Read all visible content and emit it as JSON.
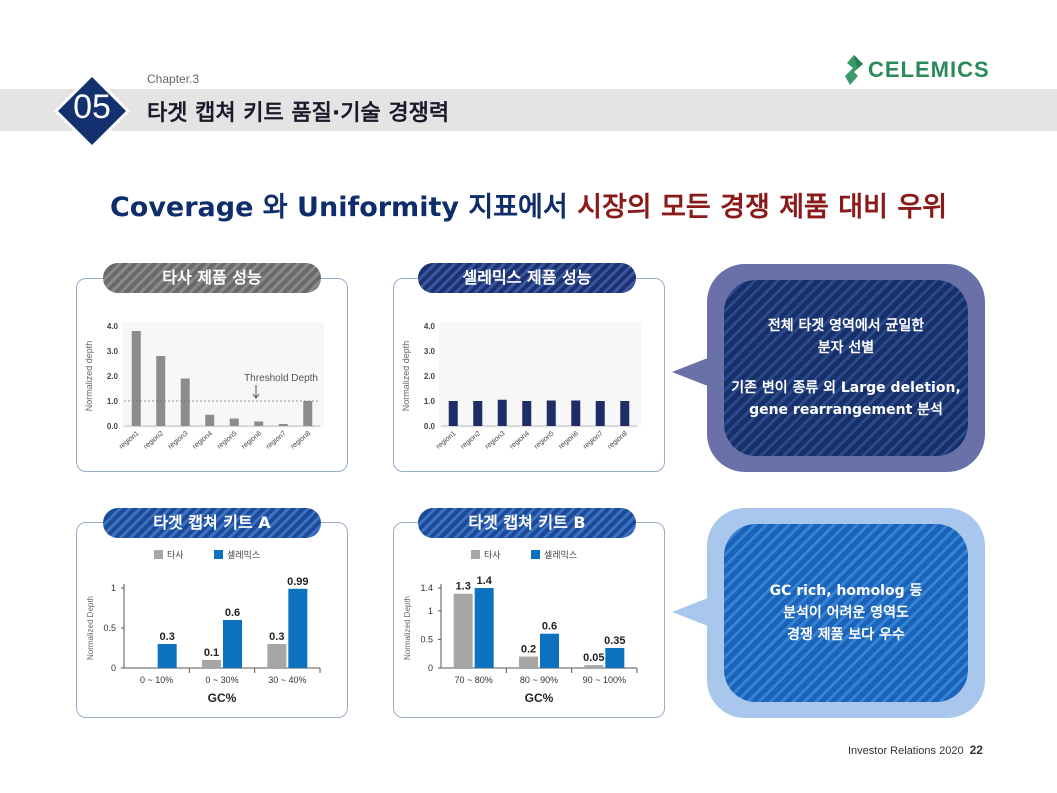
{
  "header": {
    "chapter": "Chapter.3",
    "section_number": "05",
    "title": "타겟 캡쳐 키트 품질·기술 경쟁력",
    "logo_text": "CELEMICS"
  },
  "headline": {
    "part1": "Coverage 와 Uniformity 지표에서 ",
    "part2": "시장의 모든 경쟁 제품 대비 우위",
    "color_blue": "#0f2d6b",
    "color_red": "#8b1a1a"
  },
  "panels": {
    "p1_label": "타사 제품 성능",
    "p2_label": "셀레믹스 제품 성능",
    "p3_label": "타겟 캡쳐 키트 A",
    "p4_label": "타겟 캡쳐 키트 B"
  },
  "bubbles": {
    "top": [
      "전체 타겟 영역에서 균일한",
      "분자 선별",
      "",
      "기존 변이 종류 외 Large deletion,",
      "gene rearrangement 분석"
    ],
    "bottom": [
      "GC rich, homolog 등",
      "분석이 어려운 영역도",
      "경쟁 제품 보다 우수"
    ]
  },
  "footer": {
    "text": "Investor Relations 2020",
    "page": "22"
  },
  "chart_data": [
    {
      "type": "bar",
      "categories": [
        "region1",
        "region2",
        "region3",
        "region4",
        "region5",
        "region6",
        "region7",
        "region8"
      ],
      "values": [
        3.8,
        2.8,
        1.9,
        0.45,
        0.3,
        0.18,
        0.08,
        1.0
      ],
      "ylabel": "Normalized depth",
      "yticks": [
        "0.0",
        "1.0",
        "2.0",
        "3.0",
        "4.0"
      ],
      "ylim": [
        0,
        4
      ],
      "annotation": "Threshold Depth",
      "threshold": 1.0,
      "bar_color": "#8c8c8c"
    },
    {
      "type": "bar",
      "categories": [
        "region1",
        "region2",
        "region3",
        "region4",
        "region5",
        "region6",
        "region7",
        "region8"
      ],
      "values": [
        1.0,
        1.0,
        1.05,
        1.0,
        1.02,
        1.02,
        1.0,
        1.0
      ],
      "ylabel": "Normalized depth",
      "yticks": [
        "0.0",
        "1.0",
        "2.0",
        "3.0",
        "4.0"
      ],
      "ylim": [
        0,
        4
      ],
      "bar_color": "#1e2d66"
    },
    {
      "type": "bar",
      "categories": [
        "0 ~ 10%",
        "0 ~ 30%",
        "30 ~ 40%"
      ],
      "series": [
        {
          "name": "타사",
          "values": [
            0,
            0.1,
            0.3
          ],
          "labels": [
            "",
            "0.1",
            "0.3"
          ],
          "color": "#a6a6a6"
        },
        {
          "name": "셀레믹스",
          "values": [
            0.3,
            0.6,
            0.99
          ],
          "labels": [
            "0.3",
            "0.6",
            "0.99"
          ],
          "color": "#0c72c0"
        }
      ],
      "ylabel": "Normalized Depth",
      "xlabel": "GC%",
      "yticks": [
        "0",
        "0.5",
        "1"
      ],
      "ylim": [
        0,
        1
      ]
    },
    {
      "type": "bar",
      "categories": [
        "70 ~ 80%",
        "80 ~ 90%",
        "90 ~ 100%"
      ],
      "series": [
        {
          "name": "타사",
          "values": [
            1.3,
            0.2,
            0.05
          ],
          "labels": [
            "1.3",
            "0.2",
            "0.05"
          ],
          "color": "#a6a6a6"
        },
        {
          "name": "셀레믹스",
          "values": [
            1.4,
            0.6,
            0.35
          ],
          "labels": [
            "1.4",
            "0.6",
            "0.35"
          ],
          "color": "#0c72c0"
        }
      ],
      "ylabel": "Normalized Depth",
      "xlabel": "GC%",
      "yticks": [
        "0",
        "0.5",
        "1",
        "1.4"
      ],
      "ylim": [
        0,
        1.4
      ]
    }
  ]
}
